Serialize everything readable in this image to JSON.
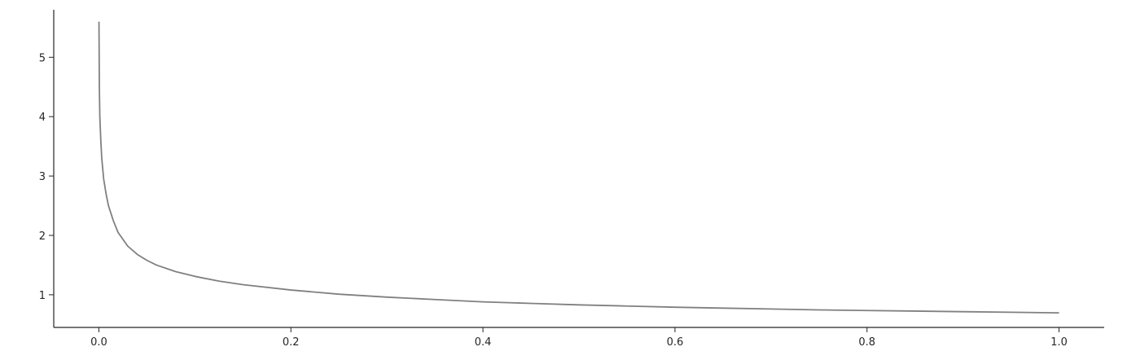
{
  "chart_data": {
    "type": "line",
    "title": "",
    "xlabel": "",
    "ylabel": "",
    "xlim": [
      -0.047,
      1.047
    ],
    "ylim": [
      0.45,
      5.8
    ],
    "xticks": [
      0.0,
      0.2,
      0.4,
      0.6,
      0.8,
      1.0
    ],
    "xtick_labels": [
      "0.0",
      "0.2",
      "0.4",
      "0.6",
      "0.8",
      "1.0"
    ],
    "yticks": [
      1,
      2,
      3,
      4,
      5
    ],
    "ytick_labels": [
      "1",
      "2",
      "3",
      "4",
      "5"
    ],
    "grid": false,
    "legend": "none",
    "spines": [
      "left",
      "bottom"
    ],
    "series": [
      {
        "color": "#808080",
        "x": [
          0.0001,
          0.0005,
          0.001,
          0.002,
          0.003,
          0.005,
          0.0075,
          0.01,
          0.015,
          0.02,
          0.03,
          0.04,
          0.05,
          0.06,
          0.08,
          0.1,
          0.125,
          0.15,
          0.2,
          0.25,
          0.3,
          0.35,
          0.4,
          0.45,
          0.5,
          0.55,
          0.6,
          0.65,
          0.7,
          0.75,
          0.8,
          0.85,
          0.9,
          0.95,
          1.0
        ],
        "y": [
          5.6,
          4.5,
          4.0,
          3.6,
          3.3,
          2.95,
          2.7,
          2.5,
          2.25,
          2.05,
          1.82,
          1.68,
          1.58,
          1.5,
          1.39,
          1.31,
          1.23,
          1.17,
          1.08,
          1.01,
          0.96,
          0.92,
          0.88,
          0.855,
          0.83,
          0.81,
          0.79,
          0.775,
          0.76,
          0.745,
          0.735,
          0.725,
          0.715,
          0.705,
          0.695
        ]
      }
    ]
  }
}
